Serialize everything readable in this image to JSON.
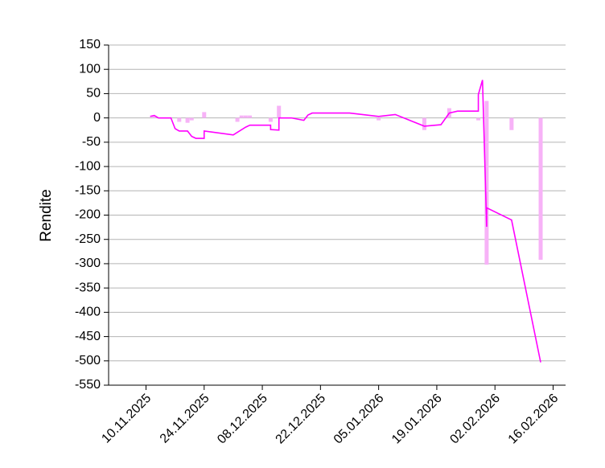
{
  "chart_data": {
    "type": "line",
    "y_label": "Rendite",
    "xlim": [
      "01.11.2025",
      "19.02.2026"
    ],
    "xticks": [
      "10.11.2025",
      "24.11.2025",
      "08.12.2025",
      "22.12.2025",
      "05.01.2026",
      "19.01.2026",
      "02.02.2026",
      "16.02.2026"
    ],
    "ylim": [
      -550,
      150
    ],
    "yticks": [
      -550,
      -500,
      -450,
      -400,
      -350,
      -300,
      -250,
      -200,
      -150,
      -100,
      -50,
      0,
      50,
      100,
      150
    ],
    "grid": true,
    "series": [
      {
        "type": "bar",
        "color": "#f7b2f7",
        "x": [
          "12.11.2025",
          "18.11.2025",
          "20.11.2025",
          "21.11.2025",
          "24.11.2025",
          "02.12.2025",
          "03.12.2025",
          "04.12.2025",
          "05.12.2025",
          "10.12.2025",
          "12.12.2025",
          "05.01.2026",
          "16.01.2026",
          "22.01.2026",
          "29.01.2026",
          "31.01.2026",
          "31.01.2026",
          "06.02.2026",
          "13.02.2026"
        ],
        "values": [
          3,
          -8,
          -10,
          -5,
          12,
          -8,
          5,
          5,
          5,
          -8,
          25,
          -5,
          -25,
          20,
          -5,
          -302,
          35,
          -25,
          -292
        ]
      },
      {
        "type": "line",
        "color": "#ff00ff",
        "x": [
          "11.11.2025",
          "12.11.2025",
          "13.11.2025",
          "16.11.2025",
          "17.11.2025",
          "18.11.2025",
          "20.11.2025",
          "21.11.2025",
          "22.11.2025",
          "24.11.2025",
          "24.11.2025",
          "01.12.2025",
          "04.12.2025",
          "05.12.2025",
          "10.12.2025",
          "10.12.2025",
          "12.12.2025",
          "12.12.2025",
          "15.12.2025",
          "18.12.2025",
          "19.12.2025",
          "20.12.2025",
          "29.12.2025",
          "05.01.2026",
          "09.01.2026",
          "16.01.2026",
          "20.01.2026",
          "22.01.2026",
          "24.01.2026",
          "29.01.2026",
          "29.01.2026",
          "30.01.2026",
          "31.01.2026",
          "31.01.2026",
          "06.02.2026",
          "13.02.2026"
        ],
        "values": [
          3,
          5,
          0,
          0,
          -22,
          -27,
          -27,
          -38,
          -42,
          -42,
          -27,
          -35,
          -19,
          -15,
          -15,
          -24,
          -25,
          0,
          0,
          -5,
          6,
          10,
          10,
          3,
          7,
          -17,
          -14,
          10,
          14,
          14,
          48,
          78,
          -224,
          -185,
          -210,
          -503
        ]
      }
    ]
  }
}
